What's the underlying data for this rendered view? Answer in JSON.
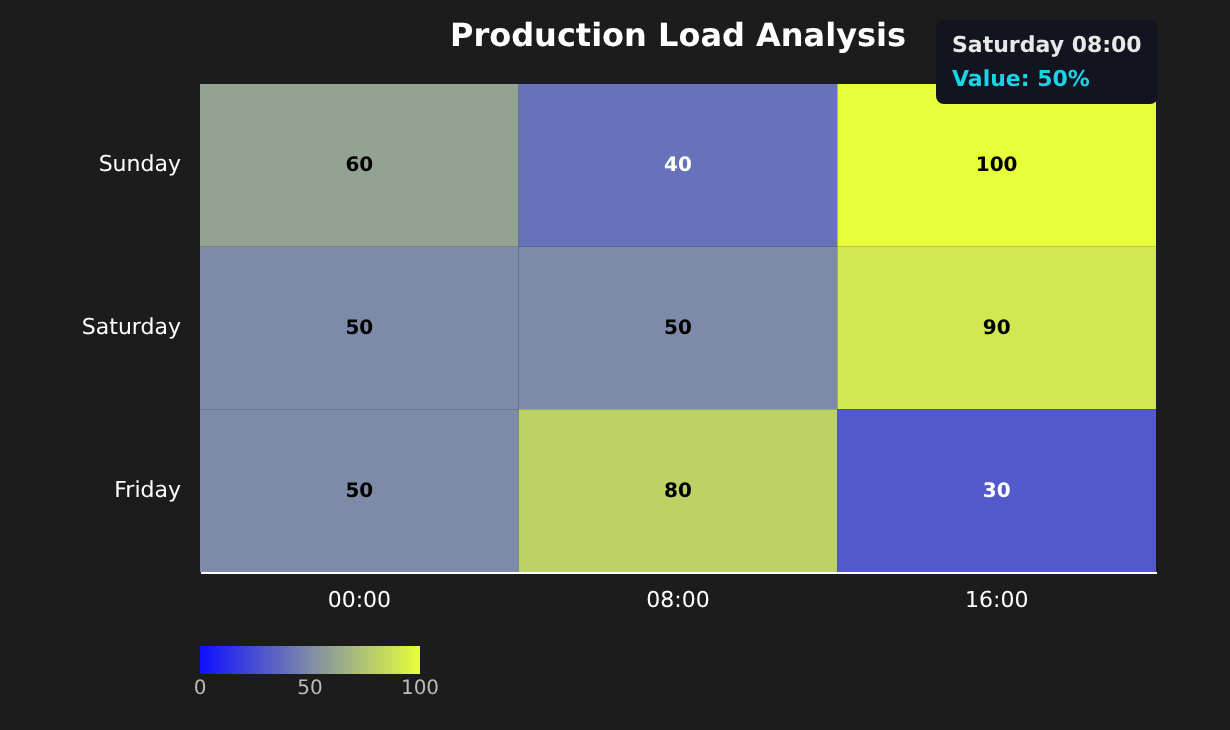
{
  "chart_data": {
    "type": "heatmap",
    "title": "Production Load Analysis",
    "categories": [
      "00:00",
      "08:00",
      "16:00"
    ],
    "y_categories": [
      "Sunday",
      "Saturday",
      "Friday"
    ],
    "cells": [
      [
        60,
        40,
        100
      ],
      [
        50,
        50,
        90
      ],
      [
        50,
        80,
        30
      ]
    ],
    "data_labels": true,
    "clim": [
      0,
      100
    ],
    "cticks": [
      0,
      50,
      100
    ],
    "grid": false,
    "annotations": [
      "Saturday 08:00",
      "Value: 50%"
    ]
  }
}
